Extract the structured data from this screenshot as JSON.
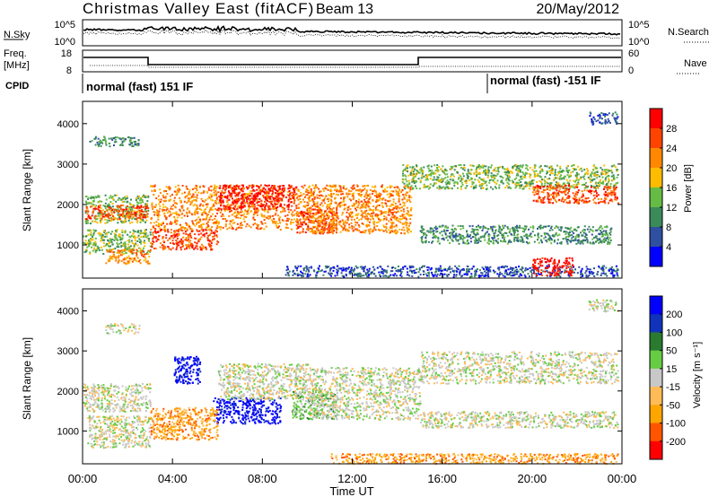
{
  "header": {
    "title": "Christmas Valley East (fitACF)",
    "beam": "Beam 13",
    "date": "20/May/2012"
  },
  "noise_panel": {
    "left_label": "N.Sky",
    "right_label": "N.Search",
    "left_ticks": [
      "10^5",
      "10^0"
    ],
    "right_ticks": [
      "10^5",
      "10^0"
    ]
  },
  "freq_panel": {
    "left_label_1": "Freq.",
    "left_label_2": "[MHz]",
    "right_label": "Nave",
    "left_ticks": [
      "18",
      "8"
    ],
    "right_ticks": [
      "60",
      "0"
    ]
  },
  "cpid": {
    "label": "CPID",
    "mode_1": "normal (fast) 151 IF",
    "mode_2": "normal (fast) -151 IF"
  },
  "chart_data": [
    {
      "type": "heatmap",
      "name": "power",
      "ylabel": "Slant Range [km]",
      "yticks": [
        1000,
        2000,
        3000,
        4000
      ],
      "ylim": [
        180,
        4550
      ],
      "xlim": [
        0,
        24
      ],
      "xticks": [
        "00:00",
        "04:00",
        "08:00",
        "12:00",
        "16:00",
        "20:00",
        "00:00"
      ],
      "colorbar": {
        "label": "Power [dB]",
        "ticks": [
          "28",
          "24",
          "20",
          "16",
          "12",
          "8",
          "4"
        ],
        "colors": [
          "#0000ff",
          "#2f4fa0",
          "#3a8a5a",
          "#66bb44",
          "#ffbb00",
          "#ff8800",
          "#ff4400",
          "#ff0000"
        ]
      },
      "regions": [
        {
          "t0": 0.1,
          "t1": 2.9,
          "r0": 1550,
          "r1": 2250,
          "level": 3
        },
        {
          "t0": 0.1,
          "t1": 2.9,
          "r0": 1650,
          "r1": 2000,
          "level": 6
        },
        {
          "t0": 0.3,
          "t1": 2.5,
          "r0": 3450,
          "r1": 3700,
          "level": 2
        },
        {
          "t0": 0.0,
          "t1": 3.0,
          "r0": 800,
          "r1": 1400,
          "level": 3
        },
        {
          "t0": 1.0,
          "t1": 3.0,
          "r0": 550,
          "r1": 900,
          "level": 5
        },
        {
          "t0": 3.0,
          "t1": 6.0,
          "r0": 900,
          "r1": 1400,
          "level": 6
        },
        {
          "t0": 3.0,
          "t1": 10.0,
          "r0": 1400,
          "r1": 2500,
          "level": 5
        },
        {
          "t0": 6.0,
          "t1": 9.5,
          "r0": 1900,
          "r1": 2500,
          "level": 7
        },
        {
          "t0": 9.5,
          "t1": 11.3,
          "r0": 1300,
          "r1": 1900,
          "level": 6
        },
        {
          "t0": 10.0,
          "t1": 14.6,
          "r0": 1300,
          "r1": 2500,
          "level": 5
        },
        {
          "t0": 14.2,
          "t1": 23.8,
          "r0": 2400,
          "r1": 3000,
          "level": 3
        },
        {
          "t0": 20.0,
          "t1": 23.8,
          "r0": 2050,
          "r1": 2500,
          "level": 6
        },
        {
          "t0": 15.0,
          "t1": 23.5,
          "r0": 1050,
          "r1": 1500,
          "level": 2
        },
        {
          "t0": 9.0,
          "t1": 23.8,
          "r0": 230,
          "r1": 500,
          "level": 1
        },
        {
          "t0": 20.0,
          "t1": 21.8,
          "r0": 250,
          "r1": 700,
          "level": 7
        },
        {
          "t0": 22.5,
          "t1": 23.8,
          "r0": 4000,
          "r1": 4300,
          "level": 1
        }
      ]
    },
    {
      "type": "heatmap",
      "name": "velocity",
      "ylabel": "Slant Range [km]",
      "yticks": [
        1000,
        2000,
        3000,
        4000
      ],
      "ylim": [
        180,
        4550
      ],
      "xlim": [
        0,
        24
      ],
      "xlabel": "Time UT",
      "xticks": [
        "00:00",
        "04:00",
        "08:00",
        "12:00",
        "16:00",
        "20:00",
        "00:00"
      ],
      "colorbar": {
        "label": "Velocity [m s⁻¹]",
        "ticks": [
          "200",
          "100",
          "50",
          "15",
          "-15",
          "-50",
          "-100",
          "-200"
        ],
        "colors": [
          "#ff0000",
          "#ff5500",
          "#ffa500",
          "#ffbb55",
          "#c8c8c8",
          "#66cc44",
          "#2a7a30",
          "#1133bb",
          "#0000ff"
        ]
      },
      "regions": [
        {
          "t0": 0.0,
          "t1": 3.0,
          "r0": 1500,
          "r1": 2200,
          "level": 4
        },
        {
          "t0": 0.2,
          "t1": 3.0,
          "r0": 600,
          "r1": 1400,
          "level": 4
        },
        {
          "t0": 1.0,
          "t1": 2.5,
          "r0": 3450,
          "r1": 3700,
          "level": 4
        },
        {
          "t0": 4.0,
          "t1": 5.2,
          "r0": 2200,
          "r1": 2900,
          "level": 8
        },
        {
          "t0": 5.8,
          "t1": 8.8,
          "r0": 1200,
          "r1": 1850,
          "level": 8
        },
        {
          "t0": 6.0,
          "t1": 10.0,
          "r0": 1800,
          "r1": 2700,
          "level": 4
        },
        {
          "t0": 9.3,
          "t1": 11.3,
          "r0": 1300,
          "r1": 2000,
          "level": 5
        },
        {
          "t0": 10.0,
          "t1": 15.0,
          "r0": 1300,
          "r1": 2600,
          "level": 4
        },
        {
          "t0": 15.0,
          "t1": 23.8,
          "r0": 2200,
          "r1": 3000,
          "level": 4
        },
        {
          "t0": 15.0,
          "t1": 23.8,
          "r0": 1100,
          "r1": 1500,
          "level": 4
        },
        {
          "t0": 11.0,
          "t1": 23.8,
          "r0": 200,
          "r1": 450,
          "level": 2
        },
        {
          "t0": 3.0,
          "t1": 6.0,
          "r0": 800,
          "r1": 1600,
          "level": 2
        },
        {
          "t0": 22.5,
          "t1": 23.8,
          "r0": 4000,
          "r1": 4300,
          "level": 4
        }
      ]
    }
  ]
}
